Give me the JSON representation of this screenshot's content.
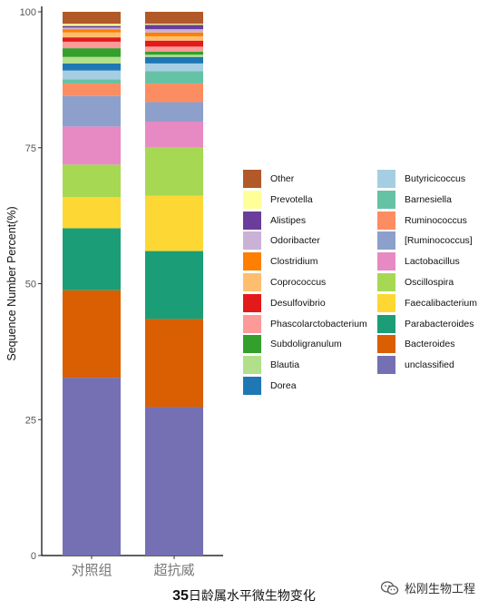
{
  "chart_data": {
    "type": "bar",
    "stacked": true,
    "ylabel": "Sequence Number Percent(%)",
    "ylim": [
      0,
      100
    ],
    "yticks": [
      0,
      25,
      50,
      75,
      100
    ],
    "categories": [
      "对照组",
      "超抗威"
    ],
    "series": [
      {
        "name": "unclassified",
        "color": "#7570b3",
        "values": [
          32.7,
          27.3
        ]
      },
      {
        "name": "Bacteroides",
        "color": "#d95f02",
        "values": [
          16.1,
          16.2
        ]
      },
      {
        "name": "Parabacteroides",
        "color": "#1b9e77",
        "values": [
          11.4,
          12.5
        ]
      },
      {
        "name": "Faecalibacterium",
        "color": "#fdd835",
        "values": [
          5.7,
          10.2
        ]
      },
      {
        "name": "Oscillospira",
        "color": "#a6d854",
        "values": [
          6.0,
          8.8
        ]
      },
      {
        "name": "Lactobacillus",
        "color": "#e78ac3",
        "values": [
          7.0,
          4.8
        ]
      },
      {
        "name": "[Ruminococcus]",
        "color": "#8da0cb",
        "values": [
          5.6,
          3.6
        ]
      },
      {
        "name": "Ruminococcus",
        "color": "#fc8d62",
        "values": [
          2.3,
          3.4
        ]
      },
      {
        "name": "Barnesiella",
        "color": "#66c2a5",
        "values": [
          0.8,
          2.3
        ]
      },
      {
        "name": "Butyricicoccus",
        "color": "#a6cee3",
        "values": [
          1.6,
          1.4
        ]
      },
      {
        "name": "Dorea",
        "color": "#1f78b4",
        "values": [
          1.3,
          1.2
        ]
      },
      {
        "name": "Blautia",
        "color": "#b2df8a",
        "values": [
          1.2,
          0.4
        ]
      },
      {
        "name": "Subdoligranulum",
        "color": "#33a02c",
        "values": [
          1.6,
          0.6
        ]
      },
      {
        "name": "Phascolarctobacterium",
        "color": "#fb9a99",
        "values": [
          1.2,
          0.9
        ]
      },
      {
        "name": "Desulfovibrio",
        "color": "#e31a1c",
        "values": [
          0.8,
          1.1
        ]
      },
      {
        "name": "Coprococcus",
        "color": "#fdbf6f",
        "values": [
          0.9,
          0.8
        ]
      },
      {
        "name": "Clostridium",
        "color": "#ff7f00",
        "values": [
          0.6,
          0.7
        ]
      },
      {
        "name": "Odoribacter",
        "color": "#cab2d6",
        "values": [
          0.3,
          0.6
        ]
      },
      {
        "name": "Alistipes",
        "color": "#6a3d9a",
        "values": [
          0.3,
          0.8
        ]
      },
      {
        "name": "Prevotella",
        "color": "#ffff99",
        "values": [
          0.4,
          0.2
        ]
      },
      {
        "name": "Other",
        "color": "#b15928",
        "values": [
          2.2,
          2.2
        ]
      }
    ],
    "legend_columns": [
      [
        "Other",
        "Prevotella",
        "Alistipes",
        "Odoribacter",
        "Clostridium",
        "Coprococcus",
        "Desulfovibrio",
        "Phascolarctobacterium",
        "Subdoligranulum",
        "Blautia",
        "Dorea"
      ],
      [
        "Butyricicoccus",
        "Barnesiella",
        "Ruminococcus",
        "[Ruminococcus]",
        "Lactobacillus",
        "Oscillospira",
        "Faecalibacterium",
        "Parabacteroides",
        "Bacteroides",
        "unclassified"
      ]
    ],
    "legend_position": "right"
  },
  "caption": {
    "bold": "35",
    "text": "日龄属水平微生物变化"
  },
  "watermark": {
    "text": "松刚生物工程",
    "icon": "wechat-icon"
  }
}
